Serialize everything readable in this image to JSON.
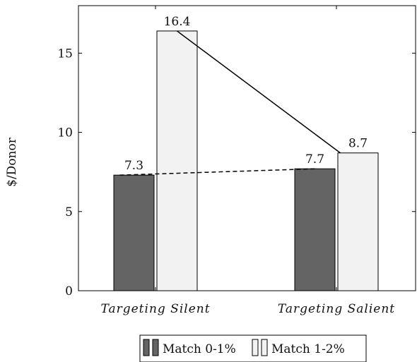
{
  "chart_data": {
    "type": "bar",
    "title": "",
    "xlabel": "",
    "ylabel": "$/Donor",
    "ylim": [
      0,
      18
    ],
    "yticks": [
      0,
      5,
      10,
      15
    ],
    "categories": [
      "Targeting Silent",
      "Targeting Salient"
    ],
    "series": [
      {
        "name": "Match 0-1%",
        "values": [
          7.3,
          7.7
        ],
        "value_labels": [
          "7.3",
          "7.7"
        ],
        "fill": "#646464",
        "connector": "dashed"
      },
      {
        "name": "Match 1-2%",
        "values": [
          16.4,
          8.7
        ],
        "value_labels": [
          "16.4",
          "8.7"
        ],
        "fill": "#f2f2f2",
        "connector": "solid"
      }
    ],
    "grid": false,
    "legend_position": "bottom-center"
  }
}
